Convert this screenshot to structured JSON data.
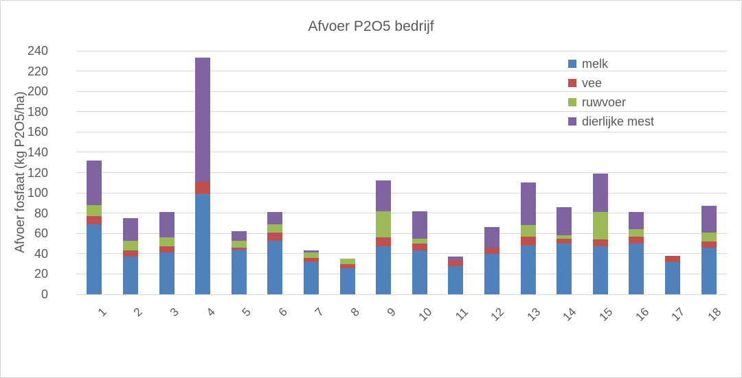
{
  "chart_data": {
    "type": "bar",
    "stacked": true,
    "title": "Afvoer P2O5 bedrijf",
    "xlabel": "",
    "ylabel": "Afvoer fosfaat (kg P2O5/ha)",
    "ylim": [
      0,
      240
    ],
    "ytick_step": 20,
    "grid": true,
    "legend_position": "top-right-inside",
    "categories": [
      "1",
      "2",
      "3",
      "4",
      "5",
      "6",
      "7",
      "8",
      "9",
      "10",
      "11",
      "12",
      "13",
      "14",
      "15",
      "16",
      "17",
      "18"
    ],
    "series": [
      {
        "name": "melk",
        "color": "#4F81BD",
        "values": [
          69,
          37,
          41,
          99,
          44,
          53,
          32,
          26,
          47,
          43,
          28,
          40,
          48,
          50,
          47,
          50,
          32,
          46
        ]
      },
      {
        "name": "vee",
        "color": "#C0504D",
        "values": [
          8,
          6,
          6,
          12,
          2,
          8,
          4,
          4,
          9,
          7,
          6,
          6,
          9,
          5,
          7,
          7,
          6,
          6
        ]
      },
      {
        "name": "ruwvoer",
        "color": "#9BBB59",
        "values": [
          11,
          10,
          9,
          0,
          7,
          8,
          5,
          5,
          26,
          5,
          0,
          0,
          11,
          3,
          27,
          7,
          0,
          9
        ]
      },
      {
        "name": "dierlijke mest",
        "color": "#8064A2",
        "values": [
          44,
          22,
          25,
          122,
          9,
          12,
          2,
          0,
          30,
          27,
          3,
          20,
          42,
          28,
          38,
          17,
          0,
          26
        ]
      }
    ]
  },
  "style": {
    "text_color": "#595959",
    "gridline_color": "#D9D9D9",
    "background": "#FFFFFF",
    "border_color": "#D3D3D3"
  }
}
